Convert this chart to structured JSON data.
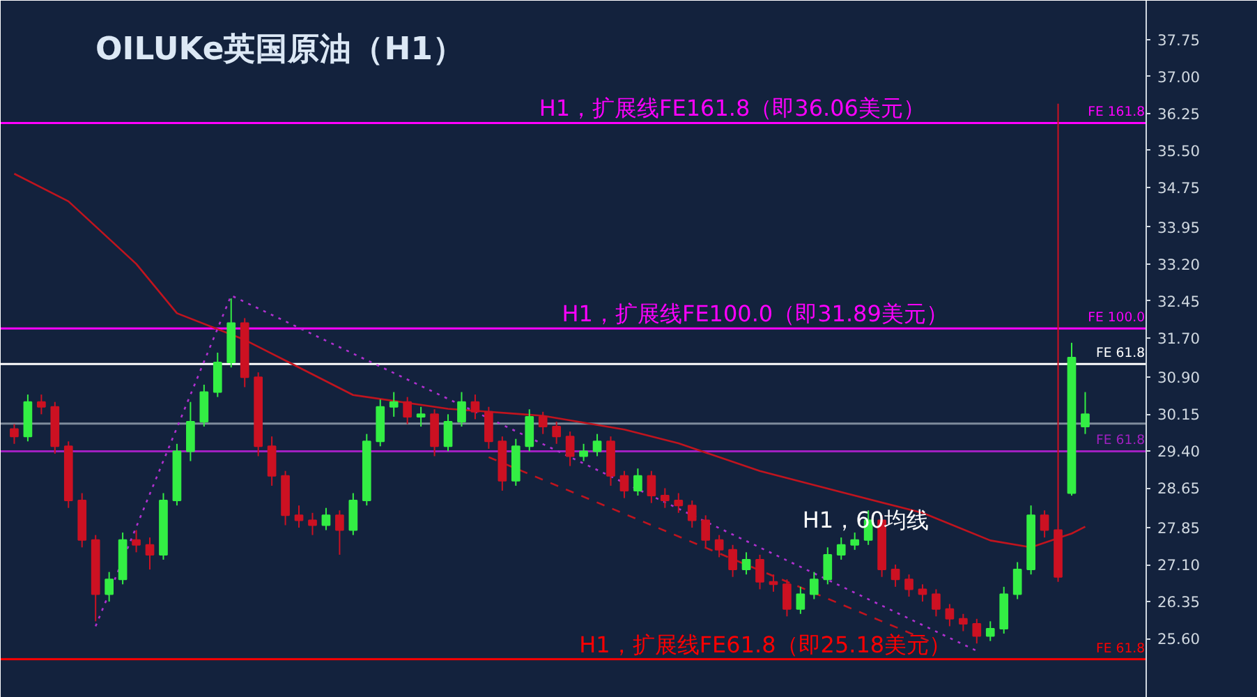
{
  "chart_data": {
    "type": "candlestick",
    "title": "OILUKe英国原油（H1）",
    "categories": [
      null,
      null,
      null,
      null,
      null,
      null,
      null,
      null,
      null,
      null,
      null,
      null,
      null,
      null,
      null,
      null,
      null,
      null,
      null,
      null,
      null,
      null,
      null,
      null,
      null,
      null,
      null,
      null,
      null,
      null,
      null,
      null,
      null,
      null,
      null,
      null,
      null,
      null,
      null,
      null,
      null,
      null,
      null,
      null,
      null,
      null,
      null,
      null,
      null,
      null,
      null,
      null,
      null,
      null,
      null,
      null,
      null,
      null,
      null,
      null,
      null,
      null,
      null,
      null,
      null,
      null,
      null,
      null,
      null,
      null,
      null,
      null,
      null,
      null,
      null,
      null,
      null,
      null,
      null,
      null
    ],
    "ohlc": [
      [
        29.85,
        29.95,
        29.55,
        29.7
      ],
      [
        29.7,
        30.55,
        29.6,
        30.4
      ],
      [
        30.4,
        30.55,
        30.15,
        30.3
      ],
      [
        30.3,
        30.4,
        29.35,
        29.5
      ],
      [
        29.5,
        29.6,
        28.25,
        28.4
      ],
      [
        28.4,
        28.55,
        27.45,
        27.6
      ],
      [
        27.6,
        27.7,
        25.95,
        26.5
      ],
      [
        26.5,
        26.95,
        26.35,
        26.8
      ],
      [
        26.8,
        27.75,
        26.7,
        27.6
      ],
      [
        27.6,
        27.8,
        27.35,
        27.5
      ],
      [
        27.5,
        27.65,
        27.0,
        27.3
      ],
      [
        27.3,
        28.55,
        27.2,
        28.4
      ],
      [
        28.4,
        29.55,
        28.3,
        29.4
      ],
      [
        29.4,
        30.4,
        29.2,
        30.0
      ],
      [
        30.0,
        30.75,
        29.9,
        30.6
      ],
      [
        30.6,
        31.4,
        30.5,
        31.2
      ],
      [
        31.2,
        32.5,
        31.1,
        32.0
      ],
      [
        32.0,
        32.1,
        30.7,
        30.9
      ],
      [
        30.9,
        31.0,
        29.3,
        29.5
      ],
      [
        29.5,
        29.7,
        28.7,
        28.9
      ],
      [
        28.9,
        29.0,
        27.9,
        28.1
      ],
      [
        28.1,
        28.3,
        27.85,
        28.0
      ],
      [
        28.0,
        28.15,
        27.7,
        27.9
      ],
      [
        27.9,
        28.25,
        27.8,
        28.1
      ],
      [
        28.1,
        28.2,
        27.3,
        27.8
      ],
      [
        27.8,
        28.55,
        27.7,
        28.4
      ],
      [
        28.4,
        29.75,
        28.3,
        29.6
      ],
      [
        29.6,
        30.45,
        29.5,
        30.3
      ],
      [
        30.3,
        30.6,
        30.1,
        30.4
      ],
      [
        30.4,
        30.5,
        29.95,
        30.1
      ],
      [
        30.1,
        30.3,
        29.9,
        30.15
      ],
      [
        30.15,
        30.25,
        29.3,
        29.5
      ],
      [
        29.5,
        30.15,
        29.4,
        30.0
      ],
      [
        30.0,
        30.6,
        29.9,
        30.4
      ],
      [
        30.4,
        30.55,
        30.05,
        30.2
      ],
      [
        30.2,
        30.3,
        29.45,
        29.6
      ],
      [
        29.6,
        29.7,
        28.6,
        28.8
      ],
      [
        28.8,
        29.65,
        28.7,
        29.5
      ],
      [
        29.5,
        30.25,
        29.4,
        30.1
      ],
      [
        30.1,
        30.2,
        29.75,
        29.9
      ],
      [
        29.9,
        30.0,
        29.55,
        29.7
      ],
      [
        29.7,
        29.8,
        29.1,
        29.3
      ],
      [
        29.3,
        29.55,
        29.2,
        29.4
      ],
      [
        29.4,
        29.75,
        29.3,
        29.6
      ],
      [
        29.6,
        29.7,
        28.7,
        28.9
      ],
      [
        28.9,
        29.0,
        28.45,
        28.6
      ],
      [
        28.6,
        29.05,
        28.5,
        28.9
      ],
      [
        28.9,
        29.0,
        28.35,
        28.5
      ],
      [
        28.5,
        28.65,
        28.25,
        28.4
      ],
      [
        28.4,
        28.55,
        28.15,
        28.3
      ],
      [
        28.3,
        28.4,
        27.85,
        28.0
      ],
      [
        28.0,
        28.1,
        27.45,
        27.6
      ],
      [
        27.6,
        27.7,
        27.25,
        27.4
      ],
      [
        27.4,
        27.5,
        26.85,
        27.0
      ],
      [
        27.0,
        27.35,
        26.9,
        27.2
      ],
      [
        27.2,
        27.3,
        26.6,
        26.75
      ],
      [
        26.75,
        26.9,
        26.55,
        26.7
      ],
      [
        26.7,
        26.8,
        26.05,
        26.2
      ],
      [
        26.2,
        26.65,
        26.1,
        26.5
      ],
      [
        26.5,
        26.95,
        26.4,
        26.8
      ],
      [
        26.8,
        27.45,
        26.7,
        27.3
      ],
      [
        27.3,
        27.65,
        27.2,
        27.5
      ],
      [
        27.5,
        27.75,
        27.4,
        27.6
      ],
      [
        27.6,
        28.2,
        27.5,
        28.0
      ],
      [
        28.0,
        28.1,
        26.85,
        27.0
      ],
      [
        27.0,
        27.1,
        26.65,
        26.8
      ],
      [
        26.8,
        26.9,
        26.45,
        26.6
      ],
      [
        26.6,
        26.7,
        26.35,
        26.5
      ],
      [
        26.5,
        26.6,
        26.05,
        26.2
      ],
      [
        26.2,
        26.3,
        25.85,
        26.0
      ],
      [
        26.0,
        26.1,
        25.75,
        25.9
      ],
      [
        25.9,
        26.0,
        25.5,
        25.65
      ],
      [
        25.65,
        25.95,
        25.55,
        25.8
      ],
      [
        25.8,
        26.65,
        25.7,
        26.5
      ],
      [
        26.5,
        27.15,
        26.4,
        27.0
      ],
      [
        27.0,
        28.3,
        26.9,
        28.1
      ],
      [
        28.1,
        28.2,
        27.65,
        27.8
      ],
      [
        27.8,
        36.45,
        26.75,
        26.85
      ],
      [
        28.55,
        31.6,
        28.5,
        31.3
      ],
      [
        29.9,
        30.6,
        29.75,
        30.15
      ]
    ],
    "colors": [
      "#cc1122",
      "#33ee44",
      "#cc1122",
      "#cc1122",
      "#cc1122",
      "#cc1122",
      "#cc1122",
      "#33ee44",
      "#33ee44",
      "#cc1122",
      "#cc1122",
      "#33ee44",
      "#33ee44",
      "#33ee44",
      "#33ee44",
      "#33ee44",
      "#33ee44",
      "#cc1122",
      "#cc1122",
      "#cc1122",
      "#cc1122",
      "#cc1122",
      "#cc1122",
      "#33ee44",
      "#cc1122",
      "#33ee44",
      "#33ee44",
      "#33ee44",
      "#33ee44",
      "#cc1122",
      "#33ee44",
      "#cc1122",
      "#33ee44",
      "#33ee44",
      "#cc1122",
      "#cc1122",
      "#cc1122",
      "#33ee44",
      "#33ee44",
      "#cc1122",
      "#cc1122",
      "#cc1122",
      "#33ee44",
      "#33ee44",
      "#cc1122",
      "#cc1122",
      "#33ee44",
      "#cc1122",
      "#cc1122",
      "#cc1122",
      "#cc1122",
      "#cc1122",
      "#cc1122",
      "#cc1122",
      "#33ee44",
      "#cc1122",
      "#cc1122",
      "#cc1122",
      "#33ee44",
      "#33ee44",
      "#33ee44",
      "#33ee44",
      "#33ee44",
      "#33ee44",
      "#cc1122",
      "#cc1122",
      "#cc1122",
      "#cc1122",
      "#cc1122",
      "#cc1122",
      "#cc1122",
      "#cc1122",
      "#33ee44",
      "#33ee44",
      "#33ee44",
      "#33ee44",
      "#cc1122",
      "#cc1122",
      "#33ee44",
      "#33ee44"
    ],
    "series": [
      {
        "type": "line",
        "color": "#c0141e",
        "values": [
          35.03,
          null,
          null,
          null,
          34.47,
          null,
          null,
          null,
          null,
          33.2,
          null,
          null,
          32.2,
          null,
          null,
          null,
          null,
          31.66,
          null,
          null,
          31.24,
          null,
          null,
          null,
          null,
          30.54,
          null,
          null,
          null,
          null,
          null,
          null,
          30.26,
          null,
          null,
          null,
          null,
          null,
          null,
          30.12,
          null,
          null,
          null,
          null,
          null,
          29.84,
          null,
          null,
          null,
          29.56,
          null,
          null,
          null,
          null,
          null,
          29.0,
          null,
          null,
          null,
          null,
          null,
          28.57,
          null,
          null,
          null,
          null,
          null,
          28.15,
          null,
          null,
          null,
          null,
          27.59,
          null,
          null,
          27.45,
          null,
          null,
          27.73,
          27.87
        ]
      },
      {
        "type": "line",
        "color": "#b030d0",
        "line_style": "dotted",
        "values": [
          null,
          null,
          null,
          null,
          null,
          null,
          25.85,
          null,
          null,
          null,
          null,
          null,
          null,
          null,
          null,
          null,
          32.56,
          null,
          null,
          null,
          null,
          null,
          null,
          null,
          null,
          null,
          null,
          null,
          null,
          null,
          null,
          null,
          null,
          null,
          null,
          null,
          null,
          null,
          null,
          null,
          null,
          null,
          null,
          null,
          null,
          null,
          null,
          null,
          null,
          null,
          null,
          null,
          null,
          null,
          null,
          null,
          null,
          null,
          null,
          null,
          null,
          null,
          null,
          null,
          null,
          null,
          null,
          null,
          null,
          null,
          null,
          25.35,
          null,
          null,
          null,
          null,
          null,
          null,
          null,
          null
        ]
      },
      {
        "type": "line",
        "color": "#c0141e",
        "line_style": "dashed",
        "values": [
          null,
          null,
          null,
          null,
          null,
          null,
          null,
          null,
          null,
          null,
          null,
          null,
          null,
          null,
          null,
          null,
          null,
          null,
          null,
          null,
          null,
          null,
          null,
          null,
          null,
          null,
          null,
          null,
          null,
          null,
          null,
          null,
          null,
          null,
          null,
          29.28,
          null,
          null,
          null,
          null,
          null,
          null,
          null,
          null,
          null,
          null,
          null,
          null,
          null,
          null,
          null,
          null,
          null,
          null,
          null,
          null,
          null,
          null,
          null,
          null,
          null,
          null,
          null,
          null,
          null,
          null,
          null,
          null,
          25.49,
          null,
          null,
          null,
          null,
          null,
          null,
          null,
          null,
          null,
          null,
          null
        ]
      }
    ],
    "ylim": [
      24.4,
      38.54
    ],
    "yticks": [
      37.75,
      {
        "value": 37.0,
        "label": "37.00"
      },
      36.25,
      {
        "value": 35.5,
        "label": "35.50"
      },
      34.75,
      33.95,
      {
        "value": 33.2,
        "label": "33.20"
      },
      32.45,
      {
        "value": 31.7,
        "label": "31.70"
      },
      {
        "value": 30.9,
        "label": "30.90"
      },
      30.15,
      {
        "value": 29.4,
        "label": "29.40"
      },
      28.65,
      27.85,
      {
        "value": 27.1,
        "label": "27.10"
      },
      26.35,
      {
        "value": 25.6,
        "label": "25.60"
      }
    ],
    "ref_lines": [
      {
        "axis": "y",
        "value": 36.06,
        "label": "FE 161.8",
        "color": "#ff00ff"
      },
      {
        "axis": "y",
        "value": 31.89,
        "label": "FE 100.0",
        "color": "#ff00ff"
      },
      {
        "axis": "y",
        "value": 31.17,
        "label": "FE 61.8",
        "color": "#ffffff"
      },
      {
        "axis": "y",
        "value": 29.96,
        "label": null,
        "color": "#7f8c9c"
      },
      {
        "axis": "y",
        "value": 29.4,
        "label": "FE 61.8",
        "color": "#a020c0"
      },
      {
        "axis": "y",
        "value": 25.18,
        "label": "FE 61.8",
        "color": "#ff0000"
      }
    ],
    "annotations": [
      {
        "text": "H1，扩展线FE161.8（即36.06美元）",
        "y": 36.06
      },
      {
        "text": "H1，扩展线FE100.0（即31.89美元）",
        "y": 31.89
      },
      {
        "text": "H1，扩展线FE61.8（即25.18美元）",
        "y": 25.18
      },
      "H1，60均线"
    ],
    "grid": false
  }
}
